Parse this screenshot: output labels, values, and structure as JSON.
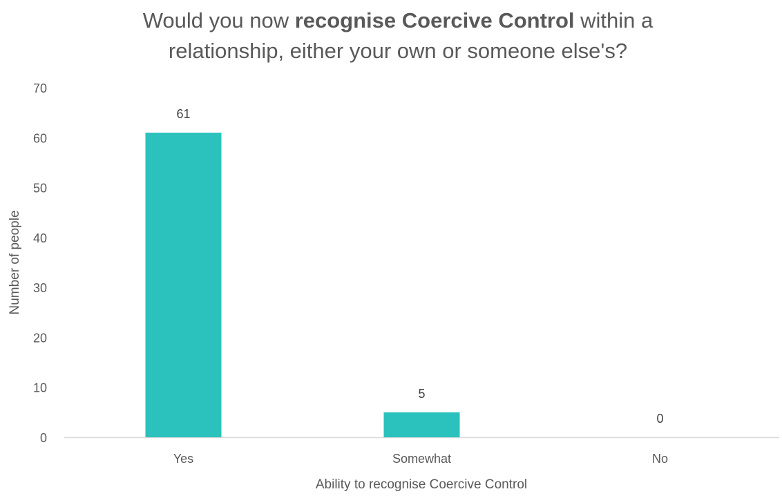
{
  "chart_data": {
    "type": "bar",
    "title_parts": [
      {
        "text": "Would you now ",
        "bold": false
      },
      {
        "text": "recognise Coercive Control",
        "bold": true
      },
      {
        "text": " within a",
        "bold": false
      }
    ],
    "title_line2": "relationship, either your own or someone else's?",
    "categories": [
      "Yes",
      "Somewhat",
      "No"
    ],
    "values": [
      61,
      5,
      0
    ],
    "data_labels": [
      "61",
      "5",
      "0"
    ],
    "xlabel": "Ability to recognise Coercive Control",
    "ylabel": "Number of people",
    "ylim": [
      0,
      70
    ],
    "yticks": [
      0,
      10,
      20,
      30,
      40,
      50,
      60,
      70
    ],
    "grid": false,
    "legend": "none",
    "bar_color": "#2BC1BD",
    "axis_color": "#D9D9D9"
  }
}
